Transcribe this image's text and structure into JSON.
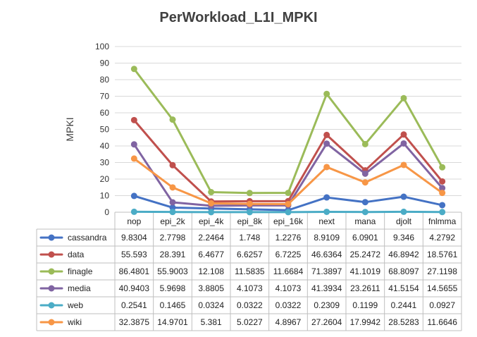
{
  "chart_data": {
    "type": "line",
    "title": "PerWorkload_L1I_MPKI",
    "xlabel": "",
    "ylabel": "MPKI",
    "ylim": [
      0,
      100
    ],
    "yticks": [
      0,
      10,
      20,
      30,
      40,
      50,
      60,
      70,
      80,
      90,
      100
    ],
    "grid": true,
    "legend": "data-table-below",
    "categories": [
      "nop",
      "epi_2k",
      "epi_4k",
      "epi_8k",
      "epi_16k",
      "next",
      "mana",
      "djolt",
      "fnlmma"
    ],
    "series": [
      {
        "name": "cassandra",
        "color": "#4472C4",
        "values": [
          9.8304,
          2.7798,
          2.2464,
          1.748,
          1.2276,
          8.9109,
          6.0901,
          9.346,
          4.2792
        ],
        "labels": [
          "9.8304",
          "2.7798",
          "2.2464",
          "1.748",
          "1.2276",
          "8.9109",
          "6.0901",
          "9.346",
          "4.2792"
        ]
      },
      {
        "name": "data",
        "color": "#C0504D",
        "values": [
          55.593,
          28.391,
          6.4677,
          6.6257,
          6.7225,
          46.6364,
          25.2472,
          46.8942,
          18.5761
        ],
        "labels": [
          "55.593",
          "28.391",
          "6.4677",
          "6.6257",
          "6.7225",
          "46.6364",
          "25.2472",
          "46.8942",
          "18.5761"
        ]
      },
      {
        "name": "finagle",
        "color": "#9BBB59",
        "values": [
          86.4801,
          55.9003,
          12.108,
          11.5835,
          11.6684,
          71.3897,
          41.1019,
          68.8097,
          27.1198
        ],
        "labels": [
          "86.4801",
          "55.9003",
          "12.108",
          "11.5835",
          "11.6684",
          "71.3897",
          "41.1019",
          "68.8097",
          "27.1198"
        ]
      },
      {
        "name": "media",
        "color": "#8064A2",
        "values": [
          40.9403,
          5.9698,
          3.8805,
          4.1073,
          4.1073,
          41.3934,
          23.2611,
          41.5154,
          14.5655
        ],
        "labels": [
          "40.9403",
          "5.9698",
          "3.8805",
          "4.1073",
          "4.1073",
          "41.3934",
          "23.2611",
          "41.5154",
          "14.5655"
        ]
      },
      {
        "name": "web",
        "color": "#4BACC6",
        "values": [
          0.2541,
          0.1465,
          0.0324,
          0.0322,
          0.0322,
          0.2309,
          0.1199,
          0.2441,
          0.0927
        ],
        "labels": [
          "0.2541",
          "0.1465",
          "0.0324",
          "0.0322",
          "0.0322",
          "0.2309",
          "0.1199",
          "0.2441",
          "0.0927"
        ]
      },
      {
        "name": "wiki",
        "color": "#F79646",
        "values": [
          32.3875,
          14.9701,
          5.381,
          5.0227,
          4.8967,
          27.2604,
          17.9942,
          28.5283,
          11.6646
        ],
        "labels": [
          "32.3875",
          "14.9701",
          "5.381",
          "5.0227",
          "4.8967",
          "27.2604",
          "17.9942",
          "28.5283",
          "11.6646"
        ]
      }
    ]
  }
}
